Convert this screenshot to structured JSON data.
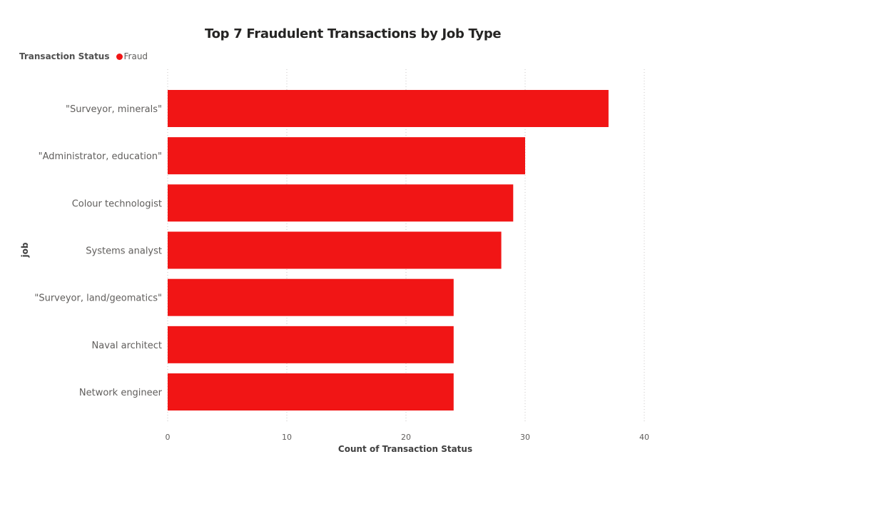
{
  "chart_data": {
    "type": "bar",
    "orientation": "horizontal",
    "title": "Top 7 Fraudulent Transactions by Job Type",
    "xlabel": "Count of Transaction Status",
    "ylabel": "job",
    "legend": {
      "title": "Transaction Status",
      "placement": "top-left",
      "entries": [
        {
          "name": "Fraud",
          "color": "#f11515"
        }
      ]
    },
    "categories": [
      "\"Surveyor, minerals\"",
      "\"Administrator, education\"",
      "Colour technologist",
      "Systems analyst",
      "\"Surveyor, land/geomatics\"",
      "Naval architect",
      "Network engineer"
    ],
    "series": [
      {
        "name": "Fraud",
        "color": "#f11515",
        "values": [
          37,
          30,
          29,
          28,
          24,
          24,
          24
        ]
      }
    ],
    "xlim": [
      0,
      40
    ],
    "xticks": [
      0,
      10,
      20,
      30,
      40
    ],
    "grid": "vertical-dotted"
  }
}
